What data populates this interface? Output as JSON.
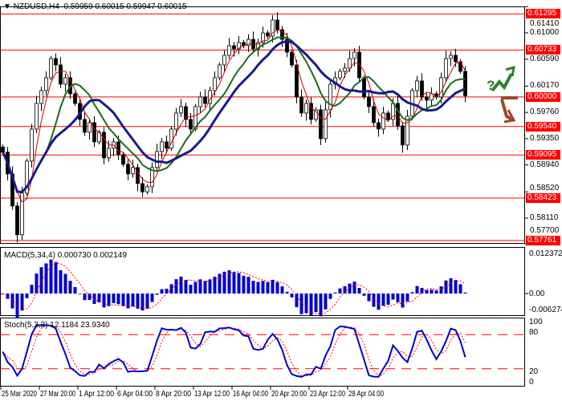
{
  "header": {
    "symbol": "NZDUSD,H4",
    "open": "0.59959",
    "high": "0.60015",
    "low": "0.59947",
    "close": "0.60015"
  },
  "macd_label": "MACD(5,34,4) 0.000730 0.002149",
  "stoch_label": "Stoch(5,3,3) 12.1184 23.9340",
  "price_axis": [
    "0.61410",
    "0.61000",
    "0.60590",
    "0.60170",
    "0.59760",
    "0.59350",
    "0.58940",
    "0.58520",
    "0.58110",
    "0.57700"
  ],
  "levels": [
    "0.61295",
    "0.60733",
    "0.60000",
    "0.59540",
    "0.59095",
    "0.58423",
    "0.57761"
  ],
  "macd_axis": [
    "0.012372",
    "0.00",
    "-0.006274"
  ],
  "stoch_axis": [
    "100",
    "80",
    "20",
    "0"
  ],
  "time_axis": [
    "25 Mar 2020",
    "27 Mar 20:00",
    "1 Apr 12:00",
    "6 Apr 04:00",
    "8 Apr 20:00",
    "13 Apr 12:00",
    "16 Apr 04:00",
    "20 Apr 20:00",
    "23 Apr 12:00",
    "28 Apr 04:00"
  ],
  "forecast": {
    "question_mark": "?",
    "up_color": "#2e7d32",
    "down_color": "#a0462a"
  },
  "colors": {
    "level": "#ff0000",
    "macd_hist": "#0000cc",
    "signal": "#ff0000",
    "stoch_main": "#0000cc",
    "ma_fast": "#cc0000",
    "ma_mid": "#1a6b1a",
    "ma_slow": "#1a1a8c"
  },
  "chart_data": {
    "type": "candlestick",
    "title": "NZDUSD,H4",
    "ylim": [
      0.577,
      0.6141
    ],
    "closes": [
      0.5914,
      0.588,
      0.583,
      0.5785,
      0.585,
      0.59,
      0.595,
      0.599,
      0.601,
      0.603,
      0.606,
      0.605,
      0.602,
      0.603,
      0.6005,
      0.599,
      0.5965,
      0.5945,
      0.596,
      0.593,
      0.5945,
      0.5905,
      0.592,
      0.593,
      0.591,
      0.5895,
      0.588,
      0.589,
      0.5865,
      0.5852,
      0.586,
      0.589,
      0.5915,
      0.593,
      0.592,
      0.595,
      0.5975,
      0.5985,
      0.5965,
      0.595,
      0.5985,
      0.6,
      0.599,
      0.601,
      0.603,
      0.605,
      0.6065,
      0.608,
      0.6075,
      0.6085,
      0.608,
      0.609,
      0.6075,
      0.6085,
      0.61,
      0.6095,
      0.612,
      0.6105,
      0.609,
      0.607,
      0.605,
      0.6,
      0.5975,
      0.599,
      0.5965,
      0.598,
      0.5935,
      0.598,
      0.602,
      0.603,
      0.604,
      0.6045,
      0.606,
      0.607,
      0.603,
      0.6,
      0.5985,
      0.596,
      0.595,
      0.5975,
      0.5965,
      0.599,
      0.5955,
      0.5925,
      0.597,
      0.601,
      0.6025,
      0.6,
      0.5995,
      0.6005,
      0.6,
      0.603,
      0.606,
      0.6065,
      0.6055,
      0.604,
      0.6002
    ],
    "macd_ylim": [
      -0.006274,
      0.012372
    ],
    "stoch_levels": [
      20,
      80
    ]
  }
}
